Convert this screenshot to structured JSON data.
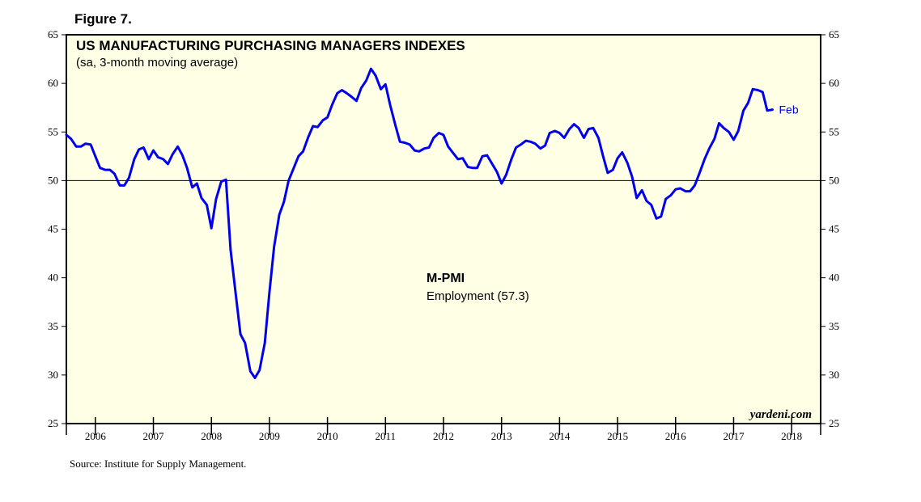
{
  "figure_label": "Figure 7.",
  "source": "Source: Institute for Supply Management.",
  "watermark": "yardeni.com",
  "colors": {
    "line": "#0000ee",
    "plot_bg": "#ffffe6",
    "frame": "#000000"
  },
  "chart_data": {
    "type": "line",
    "title": "US MANUFACTURING PURCHASING MANAGERS INDEXES",
    "subtitle": "(sa, 3-month moving average)",
    "annotation_title": "M-PMI",
    "annotation_subtitle": "Employment (57.3)",
    "end_label": "Feb",
    "reference_line": 50,
    "ylim": [
      25,
      65
    ],
    "y_ticks": [
      "25",
      "30",
      "35",
      "40",
      "45",
      "50",
      "55",
      "60",
      "65"
    ],
    "x_start": 2005.5,
    "x_end": 2018.5,
    "x_ticks": [
      "2006",
      "2007",
      "2008",
      "2009",
      "2010",
      "2011",
      "2012",
      "2013",
      "2014",
      "2015",
      "2016",
      "2017",
      "2018"
    ],
    "series": [
      {
        "name": "Employment",
        "points": [
          [
            2005.5,
            54.7
          ],
          [
            2005.58,
            54.3
          ],
          [
            2005.67,
            53.5
          ],
          [
            2005.75,
            53.5
          ],
          [
            2005.83,
            53.8
          ],
          [
            2005.92,
            53.7
          ],
          [
            2006.0,
            52.5
          ],
          [
            2006.08,
            51.3
          ],
          [
            2006.17,
            51.1
          ],
          [
            2006.25,
            51.1
          ],
          [
            2006.33,
            50.7
          ],
          [
            2006.42,
            49.5
          ],
          [
            2006.5,
            49.5
          ],
          [
            2006.58,
            50.3
          ],
          [
            2006.67,
            52.2
          ],
          [
            2006.75,
            53.2
          ],
          [
            2006.83,
            53.4
          ],
          [
            2006.92,
            52.2
          ],
          [
            2007.0,
            53.1
          ],
          [
            2007.08,
            52.4
          ],
          [
            2007.17,
            52.2
          ],
          [
            2007.25,
            51.7
          ],
          [
            2007.33,
            52.7
          ],
          [
            2007.42,
            53.5
          ],
          [
            2007.5,
            52.6
          ],
          [
            2007.58,
            51.3
          ],
          [
            2007.67,
            49.3
          ],
          [
            2007.75,
            49.7
          ],
          [
            2007.83,
            48.2
          ],
          [
            2007.92,
            47.5
          ],
          [
            2008.0,
            45.1
          ],
          [
            2008.08,
            48.1
          ],
          [
            2008.17,
            49.9
          ],
          [
            2008.25,
            50.1
          ],
          [
            2008.33,
            42.9
          ],
          [
            2008.42,
            38.3
          ],
          [
            2008.5,
            34.2
          ],
          [
            2008.58,
            33.3
          ],
          [
            2008.67,
            30.4
          ],
          [
            2008.75,
            29.7
          ],
          [
            2008.83,
            30.5
          ],
          [
            2008.92,
            33.3
          ],
          [
            2009.0,
            38.5
          ],
          [
            2009.08,
            43.2
          ],
          [
            2009.17,
            46.5
          ],
          [
            2009.25,
            47.8
          ],
          [
            2009.33,
            50.0
          ],
          [
            2009.42,
            51.3
          ],
          [
            2009.5,
            52.5
          ],
          [
            2009.58,
            53.0
          ],
          [
            2009.67,
            54.5
          ],
          [
            2009.75,
            55.6
          ],
          [
            2009.83,
            55.5
          ],
          [
            2009.92,
            56.2
          ],
          [
            2010.0,
            56.5
          ],
          [
            2010.08,
            57.8
          ],
          [
            2010.17,
            59.0
          ],
          [
            2010.25,
            59.3
          ],
          [
            2010.33,
            59.0
          ],
          [
            2010.42,
            58.6
          ],
          [
            2010.5,
            58.2
          ],
          [
            2010.58,
            59.5
          ],
          [
            2010.67,
            60.3
          ],
          [
            2010.75,
            61.5
          ],
          [
            2010.83,
            60.8
          ],
          [
            2010.92,
            59.4
          ],
          [
            2011.0,
            59.9
          ],
          [
            2011.08,
            57.8
          ],
          [
            2011.17,
            55.7
          ],
          [
            2011.25,
            54.0
          ],
          [
            2011.33,
            53.9
          ],
          [
            2011.42,
            53.7
          ],
          [
            2011.5,
            53.1
          ],
          [
            2011.58,
            53.0
          ],
          [
            2011.67,
            53.3
          ],
          [
            2011.75,
            53.4
          ],
          [
            2011.83,
            54.4
          ],
          [
            2011.92,
            54.9
          ],
          [
            2012.0,
            54.7
          ],
          [
            2012.08,
            53.5
          ],
          [
            2012.17,
            52.8
          ],
          [
            2012.25,
            52.2
          ],
          [
            2012.33,
            52.3
          ],
          [
            2012.42,
            51.4
          ],
          [
            2012.5,
            51.3
          ],
          [
            2012.58,
            51.3
          ],
          [
            2012.67,
            52.5
          ],
          [
            2012.75,
            52.6
          ],
          [
            2012.83,
            51.8
          ],
          [
            2012.92,
            50.9
          ],
          [
            2013.0,
            49.7
          ],
          [
            2013.08,
            50.6
          ],
          [
            2013.17,
            52.2
          ],
          [
            2013.25,
            53.4
          ],
          [
            2013.33,
            53.7
          ],
          [
            2013.42,
            54.1
          ],
          [
            2013.5,
            54.0
          ],
          [
            2013.58,
            53.8
          ],
          [
            2013.67,
            53.3
          ],
          [
            2013.75,
            53.6
          ],
          [
            2013.83,
            54.9
          ],
          [
            2013.92,
            55.1
          ],
          [
            2014.0,
            54.9
          ],
          [
            2014.08,
            54.4
          ],
          [
            2014.17,
            55.3
          ],
          [
            2014.25,
            55.8
          ],
          [
            2014.33,
            55.4
          ],
          [
            2014.42,
            54.4
          ],
          [
            2014.5,
            55.3
          ],
          [
            2014.58,
            55.4
          ],
          [
            2014.67,
            54.4
          ],
          [
            2014.75,
            52.5
          ],
          [
            2014.83,
            50.8
          ],
          [
            2014.92,
            51.1
          ],
          [
            2015.0,
            52.3
          ],
          [
            2015.08,
            52.9
          ],
          [
            2015.17,
            51.8
          ],
          [
            2015.25,
            50.4
          ],
          [
            2015.33,
            48.2
          ],
          [
            2015.42,
            49.0
          ],
          [
            2015.5,
            47.9
          ],
          [
            2015.58,
            47.5
          ],
          [
            2015.67,
            46.1
          ],
          [
            2015.75,
            46.3
          ],
          [
            2015.83,
            48.1
          ],
          [
            2015.92,
            48.5
          ],
          [
            2016.0,
            49.1
          ],
          [
            2016.08,
            49.2
          ],
          [
            2016.17,
            48.9
          ],
          [
            2016.25,
            48.9
          ],
          [
            2016.33,
            49.5
          ],
          [
            2016.42,
            50.9
          ],
          [
            2016.5,
            52.2
          ],
          [
            2016.58,
            53.3
          ],
          [
            2016.67,
            54.3
          ],
          [
            2016.75,
            55.9
          ],
          [
            2016.83,
            55.4
          ],
          [
            2016.92,
            55.0
          ],
          [
            2017.0,
            54.2
          ],
          [
            2017.08,
            55.1
          ],
          [
            2017.17,
            57.2
          ],
          [
            2017.25,
            58.0
          ],
          [
            2017.33,
            59.4
          ],
          [
            2017.42,
            59.3
          ],
          [
            2017.5,
            59.1
          ],
          [
            2017.58,
            57.2
          ],
          [
            2017.67,
            57.3
          ]
        ]
      }
    ]
  }
}
